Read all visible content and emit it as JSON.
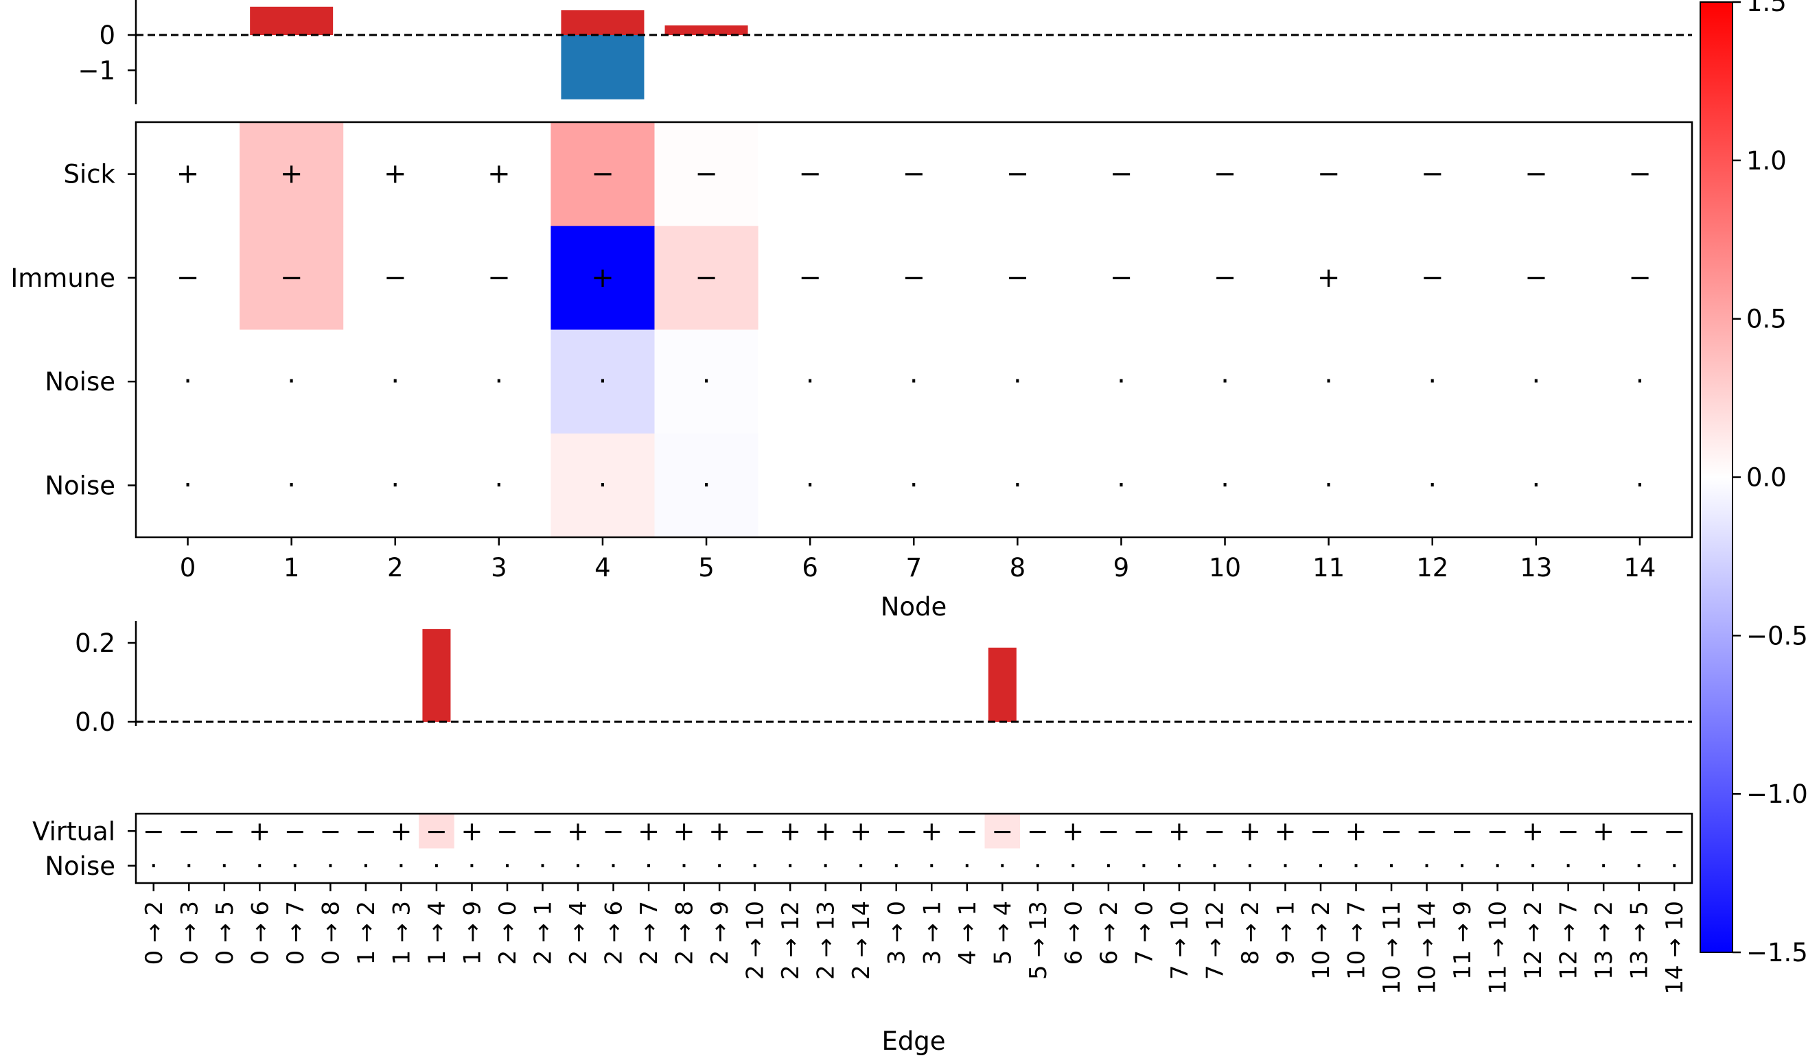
{
  "chart_data": [
    {
      "type": "bar",
      "title": "",
      "xlabel": "",
      "ylabel": "",
      "categories": [
        "0",
        "1",
        "2",
        "3",
        "4",
        "5",
        "6",
        "7",
        "8",
        "9",
        "10",
        "11",
        "12",
        "13",
        "14"
      ],
      "series": [
        {
          "name": "positive",
          "color": "#d62728",
          "values": [
            0,
            0.8,
            0,
            0,
            0.7,
            0.27,
            0,
            0,
            0,
            0,
            0,
            0,
            0,
            0,
            0
          ]
        },
        {
          "name": "negative",
          "color": "#1f77b4",
          "values": [
            0,
            0,
            0,
            0,
            -1.82,
            0,
            0,
            0,
            0,
            0,
            0,
            0,
            0,
            0,
            0
          ]
        }
      ],
      "ylim": [
        -1.9,
        0.87
      ],
      "yticks": [
        0,
        -1
      ],
      "ytick_labels": [
        "0",
        "−1"
      ],
      "reference_line": 0
    },
    {
      "type": "heatmap",
      "title": "",
      "xlabel": "Node",
      "ylabel": "",
      "x_labels": [
        "0",
        "1",
        "2",
        "3",
        "4",
        "5",
        "6",
        "7",
        "8",
        "9",
        "10",
        "11",
        "12",
        "13",
        "14"
      ],
      "y_labels": [
        "Sick",
        "Immune",
        "Noise",
        "Noise"
      ],
      "values": [
        [
          0,
          0.35,
          0,
          0,
          0.55,
          0.02,
          0,
          0,
          0,
          0,
          0,
          0,
          0,
          0,
          0
        ],
        [
          0,
          0.35,
          0,
          0,
          -1.5,
          0.22,
          0,
          0,
          0,
          0,
          0,
          0,
          0,
          0,
          0
        ],
        [
          0,
          0,
          0,
          0,
          -0.2,
          -0.02,
          0,
          0,
          0,
          0,
          0,
          0,
          0,
          0,
          0
        ],
        [
          0,
          0,
          0,
          0,
          0.1,
          -0.03,
          0,
          0,
          0,
          0,
          0,
          0,
          0,
          0,
          0
        ]
      ],
      "symbols": [
        [
          "+",
          "+",
          "+",
          "+",
          "−",
          "−",
          "−",
          "−",
          "−",
          "−",
          "−",
          "−",
          "−",
          "−",
          "−"
        ],
        [
          "−",
          "−",
          "−",
          "−",
          "+",
          "−",
          "−",
          "−",
          "−",
          "−",
          "−",
          "+",
          "−",
          "−",
          "−"
        ],
        [
          "·",
          "·",
          "·",
          "·",
          "·",
          "·",
          "·",
          "·",
          "·",
          "·",
          "·",
          "·",
          "·",
          "·",
          "·"
        ],
        [
          "·",
          "·",
          "·",
          "·",
          "·",
          "·",
          "·",
          "·",
          "·",
          "·",
          "·",
          "·",
          "·",
          "·",
          "·"
        ]
      ]
    },
    {
      "type": "bar",
      "title": "",
      "xlabel": "",
      "ylabel": "",
      "categories": [
        "0 → 2",
        "0 → 3",
        "0 → 5",
        "0 → 6",
        "0 → 7",
        "0 → 8",
        "1 → 2",
        "1 → 3",
        "1 → 4",
        "1 → 9",
        "2 → 0",
        "2 → 1",
        "2 → 4",
        "2 → 6",
        "2 → 7",
        "2 → 8",
        "2 → 9",
        "2 → 10",
        "2 → 12",
        "2 → 13",
        "2 → 14",
        "3 → 0",
        "3 → 1",
        "4 → 1",
        "5 → 4",
        "5 → 13",
        "6 → 0",
        "6 → 2",
        "7 → 0",
        "7 → 10",
        "7 → 12",
        "8 → 2",
        "9 → 1",
        "10 → 2",
        "10 → 7",
        "10 → 11",
        "10 → 14",
        "11 → 9",
        "11 → 10",
        "12 → 2",
        "12 → 7",
        "13 → 2",
        "13 → 5",
        "14 → 10"
      ],
      "values": [
        0,
        0,
        0,
        0,
        0,
        0,
        0,
        0,
        0.235,
        0,
        0,
        0,
        0,
        0,
        0,
        0,
        0,
        0,
        0,
        0,
        0,
        0,
        0,
        0,
        0.188,
        0,
        0,
        0,
        0,
        0,
        0,
        0,
        0,
        0,
        0,
        0,
        0,
        0,
        0,
        0,
        0,
        0,
        0,
        0
      ],
      "color": "#d62728",
      "ylim": [
        0,
        0.25
      ],
      "yticks": [
        0.0,
        0.2
      ],
      "ytick_labels": [
        "0.0",
        "0.2"
      ],
      "reference_line": 0
    },
    {
      "type": "heatmap",
      "title": "",
      "xlabel": "Edge",
      "ylabel": "",
      "x_labels": [
        "0 → 2",
        "0 → 3",
        "0 → 5",
        "0 → 6",
        "0 → 7",
        "0 → 8",
        "1 → 2",
        "1 → 3",
        "1 → 4",
        "1 → 9",
        "2 → 0",
        "2 → 1",
        "2 → 4",
        "2 → 6",
        "2 → 7",
        "2 → 8",
        "2 → 9",
        "2 → 10",
        "2 → 12",
        "2 → 13",
        "2 → 14",
        "3 → 0",
        "3 → 1",
        "4 → 1",
        "5 → 4",
        "5 → 13",
        "6 → 0",
        "6 → 2",
        "7 → 0",
        "7 → 10",
        "7 → 12",
        "8 → 2",
        "9 → 1",
        "10 → 2",
        "10 → 7",
        "10 → 11",
        "10 → 14",
        "11 → 9",
        "11 → 10",
        "12 → 2",
        "12 → 7",
        "13 → 2",
        "13 → 5",
        "14 → 10"
      ],
      "y_labels": [
        "Virtual",
        "Noise"
      ],
      "values": [
        [
          0,
          0,
          0,
          0,
          0,
          0,
          0,
          0,
          0.2,
          0,
          0,
          0,
          0,
          0,
          0,
          0,
          0,
          0,
          0,
          0,
          0,
          0,
          0,
          0,
          0.16,
          0,
          0,
          0,
          0,
          0,
          0,
          0,
          0,
          0,
          0,
          0,
          0,
          0,
          0,
          0,
          0,
          0,
          0,
          0
        ],
        [
          0,
          0,
          0,
          0,
          0,
          0,
          0,
          0,
          0,
          0,
          0,
          0,
          0,
          0,
          0,
          0,
          0,
          0,
          0,
          0,
          0,
          0,
          0,
          0,
          0,
          0,
          0,
          0,
          0,
          0,
          0,
          0,
          0,
          0,
          0,
          0,
          0,
          0,
          0,
          0,
          0,
          0,
          0,
          0
        ]
      ],
      "symbols": [
        [
          "−",
          "−",
          "−",
          "+",
          "−",
          "−",
          "−",
          "+",
          "−",
          "+",
          "−",
          "−",
          "+",
          "−",
          "+",
          "+",
          "+",
          "−",
          "+",
          "+",
          "+",
          "−",
          "+",
          "−",
          "−",
          "−",
          "+",
          "−",
          "−",
          "+",
          "−",
          "+",
          "+",
          "−",
          "+",
          "−",
          "−",
          "−",
          "−",
          "+",
          "−",
          "+",
          "−",
          "−"
        ],
        [
          "·",
          "·",
          "·",
          "·",
          "·",
          "·",
          "·",
          "·",
          "·",
          "·",
          "·",
          "·",
          "·",
          "·",
          "·",
          "·",
          "·",
          "·",
          "·",
          "·",
          "·",
          "·",
          "·",
          "·",
          "·",
          "·",
          "·",
          "·",
          "·",
          "·",
          "·",
          "·",
          "·",
          "·",
          "·",
          "·",
          "·",
          "·",
          "·",
          "·",
          "·",
          "·",
          "·",
          "·"
        ]
      ]
    },
    {
      "type": "colorbar",
      "cmap": "bwr",
      "range": [
        -1.5,
        1.5
      ],
      "ticks": [
        1.5,
        1.0,
        0.5,
        0.0,
        -0.5,
        -1.0,
        -1.5
      ],
      "tick_labels": [
        "1.5",
        "1.0",
        "0.5",
        "0.0",
        "−0.5",
        "−1.0",
        "−1.5"
      ]
    }
  ]
}
